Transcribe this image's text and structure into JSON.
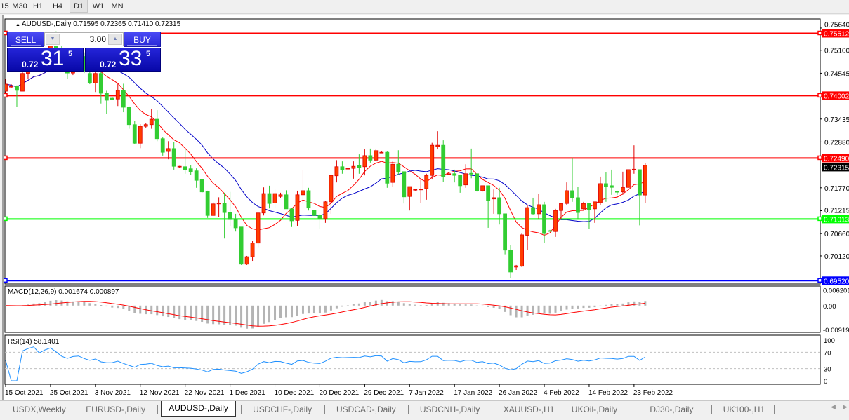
{
  "toolbar": {
    "timeframes": [
      "15",
      "M30",
      "H1",
      "H4",
      "D1",
      "W1",
      "MN"
    ],
    "active": "D1"
  },
  "chart": {
    "collapse_icon": "triangle-up-icon",
    "symbol_header": "AUDUSD-,Daily",
    "ohlc_header": "0.71595 0.72365 0.71410 0.72315"
  },
  "trade_panel": {
    "sell_label": "SELL",
    "buy_label": "BUY",
    "volume": "3.00",
    "sell_price": {
      "prefix": "0.72",
      "big": "31",
      "sup": "5"
    },
    "buy_price": {
      "prefix": "0.72",
      "big": "33",
      "sup": "5"
    }
  },
  "chart_data": {
    "type": "candlestick",
    "symbol": "AUDUSD-",
    "timeframe": "Daily",
    "colors": {
      "bull": "#ff3c00",
      "bull_outline": "#e00000",
      "bear": "#32cd32",
      "ma_fast": "#ff0000",
      "ma_slow": "#0000c8",
      "macd_hist": "#b4b4b4",
      "macd_signal": "#ff0000",
      "rsi": "#1e90ff"
    },
    "candles": [
      [
        0.7411,
        0.744,
        0.7405,
        0.7428
      ],
      [
        0.7421,
        0.7428,
        0.7418,
        0.7423
      ],
      [
        0.7423,
        0.7425,
        0.7373,
        0.7413
      ],
      [
        0.7411,
        0.7458,
        0.7411,
        0.7454
      ],
      [
        0.7454,
        0.7478,
        0.744,
        0.747
      ],
      [
        0.747,
        0.7495,
        0.7458,
        0.7488
      ],
      [
        0.7488,
        0.75,
        0.746,
        0.7468
      ],
      [
        0.7468,
        0.751,
        0.7462,
        0.7502
      ],
      [
        0.7502,
        0.7548,
        0.7495,
        0.754
      ],
      [
        0.754,
        0.7556,
        0.7505,
        0.7515
      ],
      [
        0.7515,
        0.753,
        0.747,
        0.7478
      ],
      [
        0.7478,
        0.75,
        0.744,
        0.7455
      ],
      [
        0.7455,
        0.749,
        0.745,
        0.7485
      ],
      [
        0.7485,
        0.751,
        0.747,
        0.7495
      ],
      [
        0.7495,
        0.7505,
        0.7455,
        0.746
      ],
      [
        0.7454,
        0.747,
        0.7428,
        0.7431
      ],
      [
        0.7431,
        0.7462,
        0.7409,
        0.7454
      ],
      [
        0.7454,
        0.746,
        0.7381,
        0.7406
      ],
      [
        0.7406,
        0.7412,
        0.7356,
        0.7389
      ],
      [
        0.7394,
        0.7396,
        0.739,
        0.7391
      ],
      [
        0.7392,
        0.7429,
        0.7375,
        0.7413
      ],
      [
        0.7413,
        0.7429,
        0.736,
        0.7372
      ],
      [
        0.7372,
        0.7374,
        0.732,
        0.733
      ],
      [
        0.733,
        0.7338,
        0.7282,
        0.7285
      ],
      [
        0.7285,
        0.7331,
        0.7273,
        0.7326
      ],
      [
        0.7326,
        0.7333,
        0.7322,
        0.733
      ],
      [
        0.733,
        0.7368,
        0.732,
        0.7343
      ],
      [
        0.7343,
        0.7365,
        0.729,
        0.7296
      ],
      [
        0.7296,
        0.73,
        0.7255,
        0.7263
      ],
      [
        0.7265,
        0.729,
        0.7246,
        0.7272
      ],
      [
        0.7272,
        0.7288,
        0.7221,
        0.7229
      ],
      [
        0.7228,
        0.723,
        0.7225,
        0.7229
      ],
      [
        0.7228,
        0.727,
        0.7211,
        0.7221
      ],
      [
        0.7223,
        0.7231,
        0.7208,
        0.7216
      ],
      [
        0.7218,
        0.7224,
        0.7177,
        0.7195
      ],
      [
        0.7197,
        0.7197,
        0.7165,
        0.7167
      ],
      [
        0.7168,
        0.717,
        0.7104,
        0.711
      ],
      [
        0.711,
        0.7142,
        0.711,
        0.7138
      ],
      [
        0.7138,
        0.7154,
        0.7107,
        0.714
      ],
      [
        0.7139,
        0.7165,
        0.7054,
        0.7117
      ],
      [
        0.7118,
        0.7167,
        0.7085,
        0.71
      ],
      [
        0.7102,
        0.7114,
        0.7071,
        0.708
      ],
      [
        0.7082,
        0.7082,
        0.699,
        0.6992
      ],
      [
        0.6992,
        0.7012,
        0.699,
        0.701
      ],
      [
        0.701,
        0.7048,
        0.7,
        0.7043
      ],
      [
        0.7043,
        0.7116,
        0.7033,
        0.7116
      ],
      [
        0.7116,
        0.7178,
        0.711,
        0.7163
      ],
      [
        0.7163,
        0.7182,
        0.7127,
        0.7139
      ],
      [
        0.714,
        0.7173,
        0.7127,
        0.7163
      ],
      [
        0.7156,
        0.7165,
        0.7153,
        0.716
      ],
      [
        0.716,
        0.7171,
        0.7126,
        0.7126
      ],
      [
        0.7126,
        0.7128,
        0.7082,
        0.7097
      ],
      [
        0.7098,
        0.717,
        0.7085,
        0.716
      ],
      [
        0.716,
        0.7221,
        0.7138,
        0.717
      ],
      [
        0.717,
        0.7177,
        0.7122,
        0.7128
      ],
      [
        0.7122,
        0.7124,
        0.711,
        0.711
      ],
      [
        0.711,
        0.7114,
        0.7078,
        0.7102
      ],
      [
        0.7102,
        0.7145,
        0.7092,
        0.7143
      ],
      [
        0.7143,
        0.7207,
        0.7114,
        0.7207
      ],
      [
        0.7206,
        0.7244,
        0.719,
        0.7228
      ],
      [
        0.7228,
        0.7241,
        0.7211,
        0.7221
      ],
      [
        0.7224,
        0.7226,
        0.7222,
        0.7224
      ],
      [
        0.7224,
        0.7241,
        0.7199,
        0.7229
      ],
      [
        0.7231,
        0.7258,
        0.7211,
        0.7226
      ],
      [
        0.7228,
        0.727,
        0.7207,
        0.7255
      ],
      [
        0.7255,
        0.7272,
        0.7238,
        0.7244
      ],
      [
        0.7244,
        0.727,
        0.7241,
        0.7267
      ],
      [
        0.7262,
        0.7265,
        0.7262,
        0.7263
      ],
      [
        0.7263,
        0.7265,
        0.7177,
        0.7188
      ],
      [
        0.719,
        0.7243,
        0.7179,
        0.7234
      ],
      [
        0.7234,
        0.7268,
        0.7209,
        0.7216
      ],
      [
        0.7216,
        0.7216,
        0.7139,
        0.7155
      ],
      [
        0.7156,
        0.718,
        0.7122,
        0.718
      ],
      [
        0.7172,
        0.7175,
        0.717,
        0.7173
      ],
      [
        0.7172,
        0.7197,
        0.7141,
        0.7174
      ],
      [
        0.7175,
        0.7211,
        0.7148,
        0.7207
      ],
      [
        0.7207,
        0.7286,
        0.7197,
        0.728
      ],
      [
        0.7277,
        0.7314,
        0.727,
        0.728
      ],
      [
        0.728,
        0.7292,
        0.7192,
        0.7204
      ],
      [
        0.721,
        0.7212,
        0.7208,
        0.7211
      ],
      [
        0.7211,
        0.7221,
        0.719,
        0.7207
      ],
      [
        0.7207,
        0.7207,
        0.7165,
        0.7182
      ],
      [
        0.7184,
        0.7234,
        0.7177,
        0.7211
      ],
      [
        0.7212,
        0.7272,
        0.72,
        0.721
      ],
      [
        0.7211,
        0.7211,
        0.7168,
        0.717
      ],
      [
        0.717,
        0.7182,
        0.7168,
        0.7182
      ],
      [
        0.7182,
        0.7182,
        0.708,
        0.7146
      ],
      [
        0.715,
        0.7173,
        0.7114,
        0.7153
      ],
      [
        0.7153,
        0.7177,
        0.7088,
        0.7114
      ],
      [
        0.7114,
        0.7114,
        0.7016,
        0.7026
      ],
      [
        0.7026,
        0.7039,
        0.6958,
        0.6973
      ],
      [
        0.6985,
        0.699,
        0.6978,
        0.6988
      ],
      [
        0.6987,
        0.7066,
        0.6985,
        0.7063
      ],
      [
        0.7062,
        0.7134,
        0.7026,
        0.7129
      ],
      [
        0.7129,
        0.7153,
        0.7112,
        0.7114
      ],
      [
        0.7114,
        0.7163,
        0.7102,
        0.7136
      ],
      [
        0.7136,
        0.7143,
        0.7043,
        0.7066
      ],
      [
        0.7073,
        0.7075,
        0.7071,
        0.7072
      ],
      [
        0.7071,
        0.7126,
        0.7058,
        0.7122
      ],
      [
        0.7122,
        0.7141,
        0.71,
        0.7139
      ],
      [
        0.7139,
        0.719,
        0.7136,
        0.717
      ],
      [
        0.717,
        0.7248,
        0.7143,
        0.7153
      ],
      [
        0.7153,
        0.718,
        0.71,
        0.7117
      ],
      [
        0.7126,
        0.7143,
        0.7122,
        0.7139
      ],
      [
        0.7139,
        0.7141,
        0.7078,
        0.7124
      ],
      [
        0.7126,
        0.7143,
        0.7092,
        0.7143
      ],
      [
        0.7141,
        0.7204,
        0.7136,
        0.7187
      ],
      [
        0.7187,
        0.7214,
        0.7143,
        0.718
      ],
      [
        0.7182,
        0.7221,
        0.716,
        0.7178
      ],
      [
        0.7168,
        0.717,
        0.716,
        0.7167
      ],
      [
        0.7167,
        0.7216,
        0.716,
        0.7178
      ],
      [
        0.7178,
        0.7221,
        0.7177,
        0.7221
      ],
      [
        0.7221,
        0.728,
        0.7211,
        0.7222
      ],
      [
        0.7221,
        0.7221,
        0.7086,
        0.71595
      ],
      [
        0.71595,
        0.72365,
        0.7141,
        0.72315
      ]
    ],
    "date_labels": [
      {
        "bar": 0,
        "text": "15 Oct 2021"
      },
      {
        "bar": 8,
        "text": "25 Oct 2021"
      },
      {
        "bar": 16,
        "text": "3 Nov 2021"
      },
      {
        "bar": 24,
        "text": "12 Nov 2021"
      },
      {
        "bar": 32,
        "text": "22 Nov 2021"
      },
      {
        "bar": 40,
        "text": "1 Dec 2021"
      },
      {
        "bar": 48,
        "text": "10 Dec 2021"
      },
      {
        "bar": 56,
        "text": "20 Dec 2021"
      },
      {
        "bar": 64,
        "text": "29 Dec 2021"
      },
      {
        "bar": 72,
        "text": "7 Jan 2022"
      },
      {
        "bar": 80,
        "text": "17 Jan 2022"
      },
      {
        "bar": 88,
        "text": "26 Jan 2022"
      },
      {
        "bar": 96,
        "text": "4 Feb 2022"
      },
      {
        "bar": 104,
        "text": "14 Feb 2022"
      },
      {
        "bar": 112,
        "text": "23 Feb 2022"
      }
    ],
    "price_ticks": [
      "0.75640",
      "0.75100",
      "0.74545",
      "0.73435",
      "0.72880",
      "0.71770",
      "0.71215",
      "0.70660",
      "0.70120"
    ],
    "price_range": [
      0.6944,
      0.7586
    ],
    "horizontal_lines": [
      {
        "price": 0.75512,
        "label": "0.75512",
        "color": "#ff0000"
      },
      {
        "price": 0.74002,
        "label": "0.74002",
        "color": "#ff0000"
      },
      {
        "price": 0.7249,
        "label": "0.72490",
        "color": "#ff0000"
      },
      {
        "price": 0.71013,
        "label": "0.71013",
        "color": "#00ff00"
      },
      {
        "price": 0.6952,
        "label": "0.69520",
        "color": "#0000ff"
      }
    ],
    "current_price": {
      "price": 0.72315,
      "label": "0.72315"
    },
    "moving_averages": [
      {
        "period": 8,
        "color": "#ff0000"
      },
      {
        "period": 16,
        "color": "#0000c8"
      }
    ],
    "macd": {
      "label": "MACD(12,26,9) 0.001674 0.000897",
      "ticks": [
        {
          "value": 0.006201,
          "text": "0.006201"
        },
        {
          "value": 0,
          "text": "0.00"
        },
        {
          "value": -0.00919,
          "text": "-0.00919"
        }
      ],
      "range": [
        -0.0103,
        0.0075
      ]
    },
    "rsi": {
      "label": "RSI(14) 58.1401",
      "ticks": [
        {
          "value": 100,
          "text": "100"
        },
        {
          "value": 70,
          "text": "70"
        },
        {
          "value": 30,
          "text": "30"
        },
        {
          "value": 0,
          "text": "0"
        }
      ],
      "levels": [
        70,
        30
      ]
    }
  },
  "tabs": [
    "USDX,Weekly",
    "EURUSD-,Daily",
    "AUDUSD-,Daily",
    "USDCHF-,Daily",
    "USDCAD-,Daily",
    "USDCNH-,Daily",
    "XAUUSD-,H1",
    "UKOil-,Daily",
    "DJ30-,Daily",
    "UK100-,H1"
  ],
  "active_tab": "AUDUSD-,Daily",
  "tab_scroll": {
    "left_icon": "scroll-left-icon",
    "right_icon": "scroll-right-icon",
    "left": "◀",
    "right": "▶"
  }
}
